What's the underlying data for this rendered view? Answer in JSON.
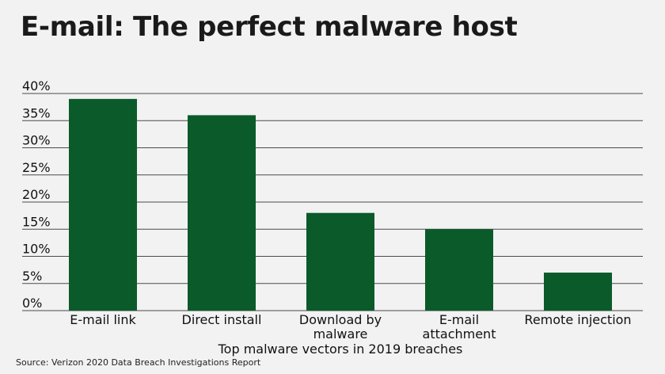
{
  "title": "E-mail: The perfect malware host",
  "source": "Source: Verizon 2020 Data Breach Investigations Report",
  "colors": {
    "bar": "#0b5a2a",
    "grid": "#4a4a4a",
    "background": "#f1f2f1"
  },
  "chart_data": {
    "type": "bar",
    "categories": [
      "E-mail link",
      "Direct install",
      "Download by malware",
      "E-mail attachment",
      "Remote injection"
    ],
    "category_lines": [
      [
        "E-mail link"
      ],
      [
        "Direct install"
      ],
      [
        "Download by",
        "malware"
      ],
      [
        "E-mail",
        "attachment"
      ],
      [
        "Remote injection"
      ]
    ],
    "values": [
      39,
      36,
      18,
      15,
      7
    ],
    "xlabel": "Top malware vectors in 2019 breaches",
    "ylabel": "",
    "ylim": [
      0,
      40
    ],
    "yticks": [
      0,
      5,
      10,
      15,
      20,
      25,
      30,
      35,
      40
    ],
    "ytick_labels": [
      "0%",
      "5%",
      "10%",
      "15%",
      "20%",
      "25%",
      "30%",
      "35%",
      "40%"
    ],
    "grid": true,
    "legend": "none"
  }
}
